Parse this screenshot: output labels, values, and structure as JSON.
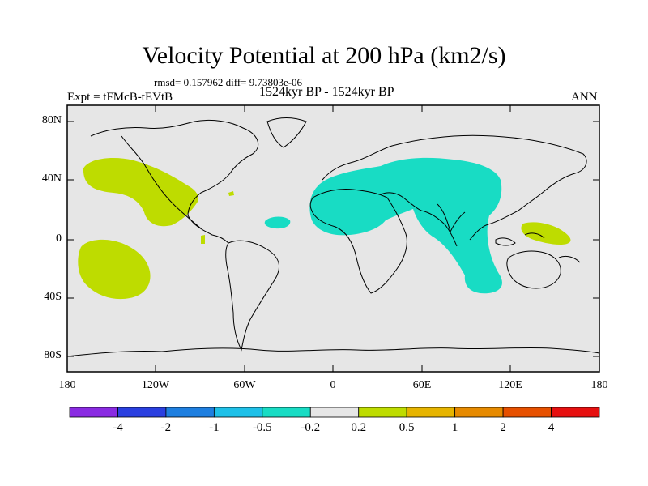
{
  "title": "Velocity Potential at 200 hPa (km2/s)",
  "stats": "rmsd= 0.157962  diff= 9.73803e-06",
  "subtitle": "1524kyr BP - 1524kyr BP",
  "expt": "Expt = tFMcB-tEVtB",
  "season": "ANN",
  "axes": {
    "lat_labels": [
      "80N",
      "40N",
      "0",
      "40S",
      "80S"
    ],
    "lon_labels": [
      "180",
      "120W",
      "60W",
      "0",
      "60E",
      "120E",
      "180"
    ]
  },
  "colorbar": {
    "colors": [
      "#8a2be2",
      "#2a3fe0",
      "#1e7fe0",
      "#1ec0e8",
      "#18dcc4",
      "#e6e6e6",
      "#bedc00",
      "#e6b400",
      "#e68a00",
      "#e65000",
      "#e61010"
    ],
    "labels": [
      "-4",
      "-2",
      "-1",
      "-0.5",
      "-0.2",
      "0.2",
      "0.5",
      "1",
      "2",
      "4"
    ]
  },
  "map_colors": {
    "background": "#e6e6e6",
    "positive": "#bedc00",
    "negative": "#18dcc4"
  }
}
